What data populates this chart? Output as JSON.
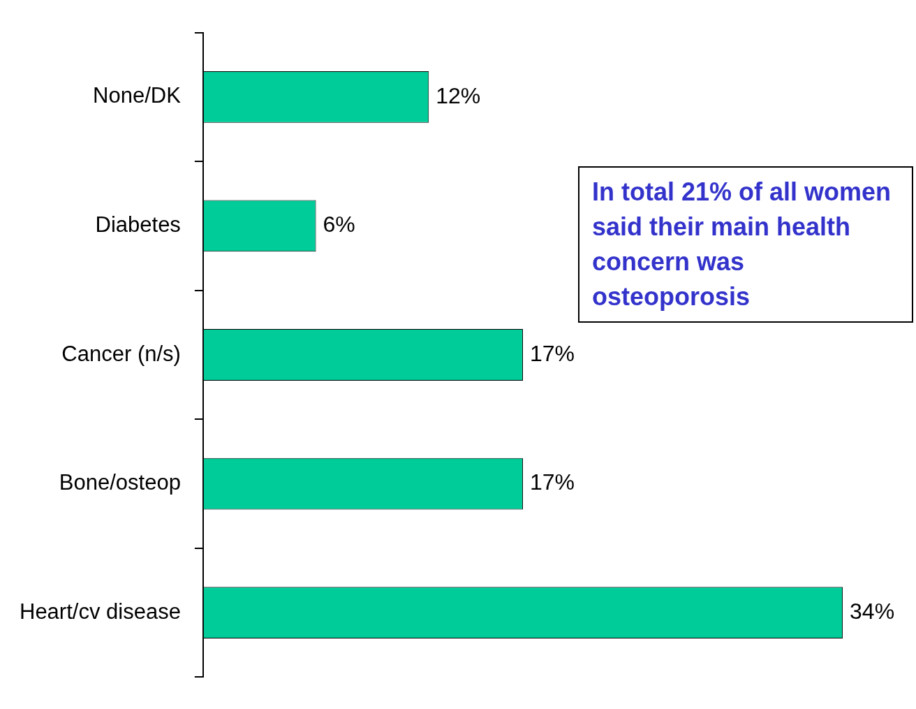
{
  "chart_data": {
    "type": "bar",
    "orientation": "horizontal",
    "categories": [
      "None/DK",
      "Diabetes",
      "Cancer (n/s)",
      "Bone/osteop",
      "Heart/cv disease"
    ],
    "values": [
      12,
      6,
      17,
      17,
      34
    ],
    "color": "#00cc99",
    "value_labels": [
      "12%",
      "6%",
      "17%",
      "17%",
      "34%"
    ],
    "annotations": [
      "In total 21% of all women said their main health concern was osteoporosis"
    ]
  }
}
